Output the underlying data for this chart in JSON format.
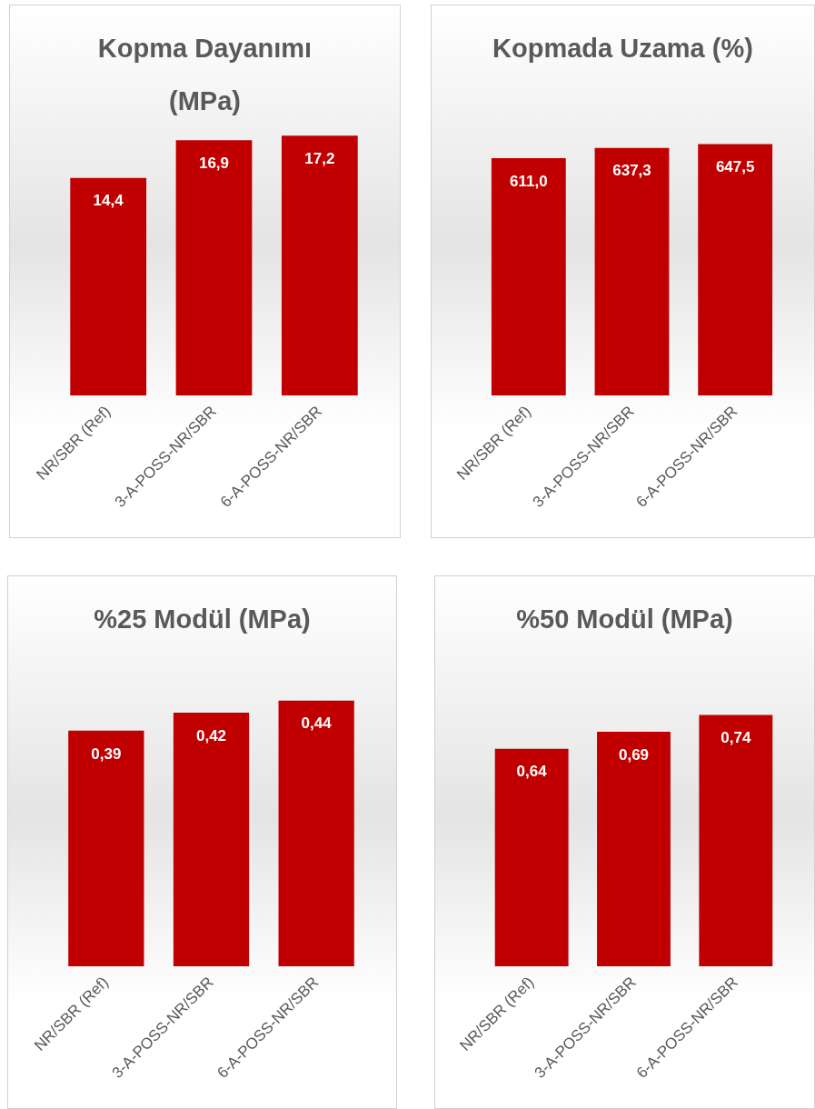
{
  "chart_data": [
    {
      "type": "bar",
      "title": "Kopma Dayanımı (MPa)",
      "categories": [
        "NR/SBR (Ref)",
        "3-A-POSS-NR/SBR",
        "6-A-POSS-NR/SBR"
      ],
      "values": [
        14.4,
        16.9,
        17.2
      ],
      "value_labels": [
        "14,4",
        "16,9",
        "17,2"
      ],
      "color": "#c00000",
      "tick_labels": "x"
    },
    {
      "type": "bar",
      "title": "Kopmada Uzama (%)",
      "categories": [
        "NR/SBR (Ref)",
        "3-A-POSS-NR/SBR",
        "6-A-POSS-NR/SBR"
      ],
      "values": [
        611.0,
        637.3,
        647.5
      ],
      "value_labels": [
        "611,0",
        "637,3",
        "647,5"
      ],
      "color": "#c00000",
      "tick_labels": "x"
    },
    {
      "type": "bar",
      "title": "%25 Modül (MPa)",
      "categories": [
        "NR/SBR (Ref)",
        "3-A-POSS-NR/SBR",
        "6-A-POSS-NR/SBR"
      ],
      "values": [
        0.39,
        0.42,
        0.44
      ],
      "value_labels": [
        "0,39",
        "0,42",
        "0,44"
      ],
      "color": "#c00000",
      "tick_labels": "x"
    },
    {
      "type": "bar",
      "title": "%50 Modül (MPa)",
      "categories": [
        "NR/SBR (Ref)",
        "3-A-POSS-NR/SBR",
        "6-A-POSS-NR/SBR"
      ],
      "values": [
        0.64,
        0.69,
        0.74
      ],
      "value_labels": [
        "0,64",
        "0,69",
        "0,74"
      ],
      "color": "#c00000",
      "tick_labels": "x"
    }
  ]
}
